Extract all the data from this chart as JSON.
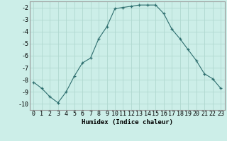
{
  "x": [
    0,
    1,
    2,
    3,
    4,
    5,
    6,
    7,
    8,
    9,
    10,
    11,
    12,
    13,
    14,
    15,
    16,
    17,
    18,
    19,
    20,
    21,
    22,
    23
  ],
  "y": [
    -8.2,
    -8.7,
    -9.4,
    -9.9,
    -9.0,
    -7.7,
    -6.6,
    -6.2,
    -4.6,
    -3.6,
    -2.1,
    -2.0,
    -1.9,
    -1.8,
    -1.8,
    -1.8,
    -2.5,
    -3.8,
    -4.6,
    -5.5,
    -6.4,
    -7.5,
    -7.9,
    -8.7
  ],
  "xlabel": "Humidex (Indice chaleur)",
  "xlim": [
    -0.5,
    23.5
  ],
  "ylim": [
    -10.5,
    -1.5
  ],
  "yticks": [
    -10,
    -9,
    -8,
    -7,
    -6,
    -5,
    -4,
    -3,
    -2
  ],
  "xticks": [
    0,
    1,
    2,
    3,
    4,
    5,
    6,
    7,
    8,
    9,
    10,
    11,
    12,
    13,
    14,
    15,
    16,
    17,
    18,
    19,
    20,
    21,
    22,
    23
  ],
  "line_color": "#2d6e6e",
  "marker": "+",
  "bg_color": "#cceee8",
  "grid_color": "#b0d8d0",
  "label_fontsize": 6.5,
  "tick_fontsize": 6
}
